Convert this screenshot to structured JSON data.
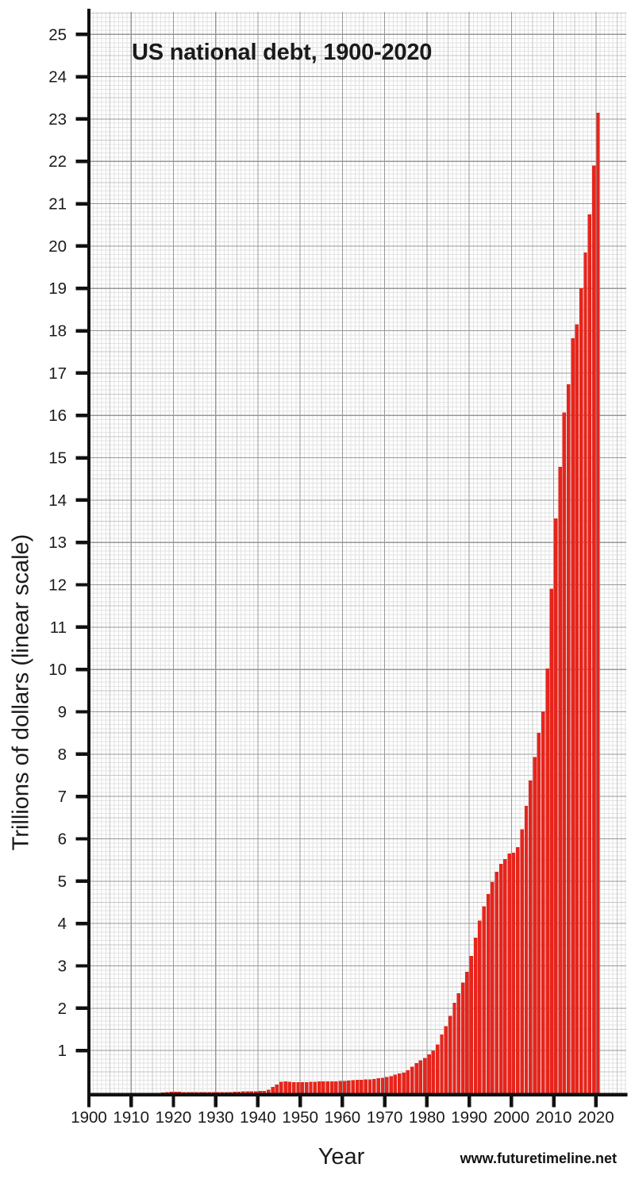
{
  "page": {
    "background": "#ffffff",
    "watermark": "www.futuretimeline.net"
  },
  "chart_data": {
    "type": "bar",
    "title": "US national debt, 1900-2020",
    "xlabel": "Year",
    "ylabel": "Trillions of dollars (linear scale)",
    "legend": "none",
    "grid": true,
    "x_start": 1900,
    "x_step": 1,
    "x_end": 2020,
    "xlim_grid": [
      1900,
      2027
    ],
    "ylim": [
      0,
      25.5
    ],
    "x_ticks": [
      1900,
      1910,
      1920,
      1930,
      1940,
      1950,
      1960,
      1970,
      1980,
      1990,
      2000,
      2010,
      2020
    ],
    "y_ticks": [
      1,
      2,
      3,
      4,
      5,
      6,
      7,
      8,
      9,
      10,
      11,
      12,
      13,
      14,
      15,
      16,
      17,
      18,
      19,
      20,
      21,
      22,
      23,
      24,
      25
    ],
    "x_minor_step_years": 1,
    "x_medium_step_years": 5,
    "x_major_step_years": 10,
    "y_minor_step": 0.1,
    "y_medium_step": 0.5,
    "y_major_step": 1,
    "values": [
      0.002,
      0.002,
      0.002,
      0.002,
      0.002,
      0.002,
      0.002,
      0.002,
      0.003,
      0.003,
      0.003,
      0.003,
      0.003,
      0.003,
      0.003,
      0.003,
      0.004,
      0.006,
      0.015,
      0.027,
      0.026,
      0.024,
      0.023,
      0.022,
      0.021,
      0.021,
      0.02,
      0.019,
      0.018,
      0.017,
      0.016,
      0.017,
      0.019,
      0.023,
      0.027,
      0.029,
      0.034,
      0.036,
      0.037,
      0.04,
      0.043,
      0.049,
      0.072,
      0.137,
      0.201,
      0.259,
      0.269,
      0.258,
      0.253,
      0.253,
      0.257,
      0.255,
      0.259,
      0.266,
      0.271,
      0.274,
      0.273,
      0.271,
      0.276,
      0.285,
      0.286,
      0.289,
      0.298,
      0.306,
      0.312,
      0.317,
      0.32,
      0.326,
      0.348,
      0.354,
      0.371,
      0.398,
      0.427,
      0.458,
      0.475,
      0.533,
      0.62,
      0.699,
      0.771,
      0.827,
      0.908,
      0.998,
      1.142,
      1.377,
      1.572,
      1.823,
      2.125,
      2.35,
      2.602,
      2.857,
      3.233,
      3.665,
      4.065,
      4.411,
      4.693,
      4.974,
      5.225,
      5.413,
      5.526,
      5.656,
      5.674,
      5.807,
      6.228,
      6.783,
      7.379,
      7.933,
      8.507,
      9.008,
      10.025,
      11.91,
      13.562,
      14.79,
      16.066,
      16.738,
      17.824,
      18.15,
      19.0,
      19.85,
      20.75,
      21.9,
      23.15
    ],
    "colors": {
      "bar": "#e8241b",
      "bar_seam": "#f6857a",
      "axis": "#111111",
      "grid_minor": "#e2e2e2",
      "grid_medium": "#c6c6c6",
      "grid_major": "#979797",
      "text": "#1a1a1a"
    }
  }
}
